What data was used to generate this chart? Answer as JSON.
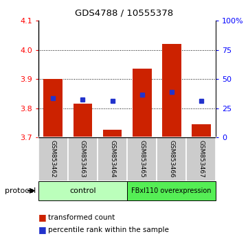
{
  "title": "GDS4788 / 10555378",
  "samples": [
    "GSM853462",
    "GSM853463",
    "GSM853464",
    "GSM853465",
    "GSM853466",
    "GSM853467"
  ],
  "bar_bottom": 3.7,
  "bar_tops": [
    3.9,
    3.815,
    3.725,
    3.935,
    4.02,
    3.745
  ],
  "blue_squares": [
    3.835,
    3.83,
    3.825,
    3.845,
    3.855,
    3.825
  ],
  "ylim": [
    3.7,
    4.1
  ],
  "yticks_left": [
    3.7,
    3.8,
    3.9,
    4.0,
    4.1
  ],
  "yticks_right": [
    0,
    25,
    50,
    75,
    100
  ],
  "ytick_right_labels": [
    "0",
    "25",
    "50",
    "75",
    "100%"
  ],
  "bar_color": "#cc2200",
  "blue_color": "#2233cc",
  "control_label": "control",
  "overexpression_label": "FBxl110 overexpression",
  "protocol_label": "protocol",
  "legend_red": "transformed count",
  "legend_blue": "percentile rank within the sample",
  "control_color": "#bbffbb",
  "overexpression_color": "#55ee55",
  "sample_bg_color": "#cccccc",
  "bar_width": 0.65
}
